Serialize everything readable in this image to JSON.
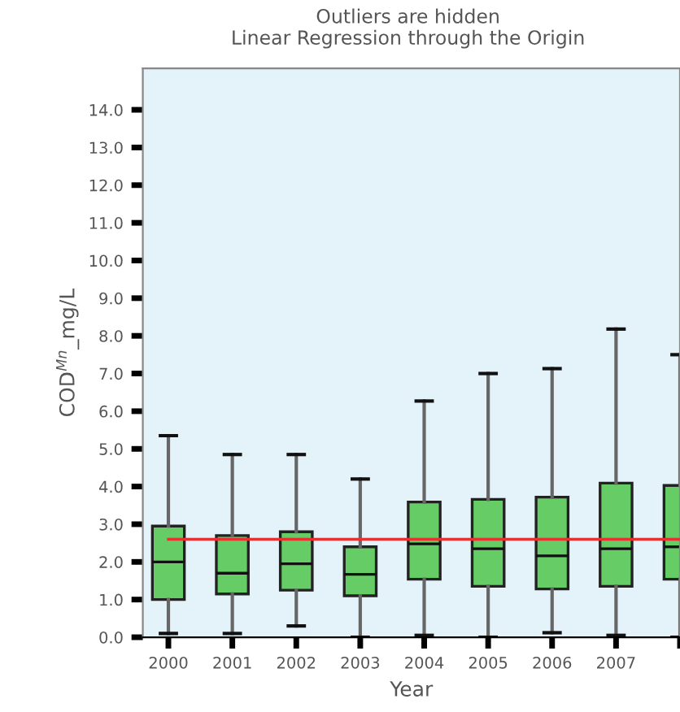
{
  "chart_data": {
    "type": "box",
    "title": "Outliers are hidden",
    "subtitle": "Linear Regression through the Origin",
    "xlabel": "Year",
    "ylabel": "COD$^{Mn}$_mg/L",
    "categories": [
      "2000",
      "2001",
      "2002",
      "2003",
      "2004",
      "2005",
      "2006",
      "2007",
      null
    ],
    "series": [
      {
        "color": "#66cc66",
        "boxes": [
          {
            "low": 0.1,
            "q1": 1.0,
            "median": 2.0,
            "q3": 2.95,
            "high": 5.35
          },
          {
            "low": 0.1,
            "q1": 1.15,
            "median": 1.7,
            "q3": 2.7,
            "high": 4.85
          },
          {
            "low": 0.3,
            "q1": 1.25,
            "median": 1.95,
            "q3": 2.8,
            "high": 4.85
          },
          {
            "low": 0.0,
            "q1": 1.1,
            "median": 1.67,
            "q3": 2.4,
            "high": 4.2
          },
          {
            "low": 0.05,
            "q1": 1.54,
            "median": 2.48,
            "q3": 3.59,
            "high": 6.27
          },
          {
            "low": 0.0,
            "q1": 1.35,
            "median": 2.35,
            "q3": 3.66,
            "high": 7.0
          },
          {
            "low": 0.12,
            "q1": 1.28,
            "median": 2.16,
            "q3": 3.72,
            "high": 7.13
          },
          {
            "low": 0.05,
            "q1": 1.35,
            "median": 2.35,
            "q3": 4.09,
            "high": 8.18
          },
          {
            "low": 0.0,
            "q1": 1.54,
            "median": 2.4,
            "q3": 4.03,
            "high": 7.5
          }
        ]
      },
      {
        "type": "line",
        "color": "#e83030",
        "values": [
          2.6,
          2.6,
          2.6,
          2.6,
          2.6,
          2.6,
          2.6,
          2.6,
          2.6
        ]
      }
    ],
    "ylim": [
      0,
      15.1
    ],
    "yticks": [
      {
        "value": 0,
        "label": "0.0"
      },
      {
        "value": 1,
        "label": "1.0"
      },
      {
        "value": 2,
        "label": "2.0"
      },
      {
        "value": 3,
        "label": "3.0"
      },
      {
        "value": 4,
        "label": "4.0"
      },
      {
        "value": 5,
        "label": "5.0"
      },
      {
        "value": 6,
        "label": "6.0"
      },
      {
        "value": 7,
        "label": "7.0"
      },
      {
        "value": 8,
        "label": "8.0"
      },
      {
        "value": 9,
        "label": "9.0"
      },
      {
        "value": 10,
        "label": "10.0"
      },
      {
        "value": 11,
        "label": "11.0"
      },
      {
        "value": 12,
        "label": "12.0"
      },
      {
        "value": 13,
        "label": "13.0"
      },
      {
        "value": 14,
        "label": "14.0"
      }
    ],
    "grid": false,
    "legend": false
  }
}
